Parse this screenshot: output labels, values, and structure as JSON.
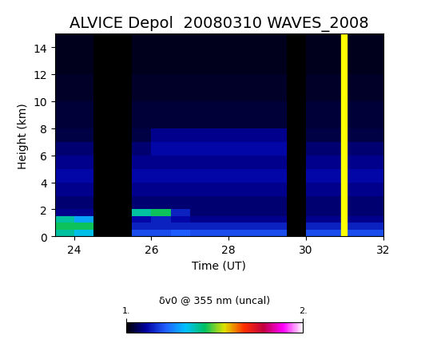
{
  "chart_data": {
    "type": "heatmap",
    "title": "ALVICE Depol  20080310 WAVES_2008",
    "x_label": "Time (UT)",
    "y_label": "Height (km)",
    "xlim": [
      23.5,
      32
    ],
    "xticks": [
      24,
      26,
      28,
      30,
      32
    ],
    "ylim": [
      0,
      15
    ],
    "yticks": [
      0,
      2,
      4,
      6,
      8,
      10,
      12,
      14
    ],
    "x_edges": [
      23.5,
      24,
      24.5,
      25,
      25.5,
      26,
      26.5,
      27,
      27.5,
      28,
      28.5,
      29,
      29.5,
      30,
      30.5,
      31,
      31.5,
      32
    ],
    "y_edges": [
      0,
      0.5,
      1,
      1.5,
      2,
      3,
      4,
      5,
      6,
      7,
      8,
      10,
      12,
      15
    ],
    "cells": [
      [
        1.4,
        1.35,
        1.0,
        1.0,
        1.2,
        1.2,
        1.22,
        1.2,
        1.2,
        1.2,
        1.2,
        1.2,
        null,
        1.2,
        1.2,
        1.2,
        1.2
      ],
      [
        1.45,
        1.45,
        1.0,
        1.0,
        1.15,
        1.15,
        1.15,
        1.15,
        1.15,
        1.15,
        1.15,
        1.15,
        null,
        1.15,
        1.15,
        1.15,
        1.15
      ],
      [
        1.4,
        1.3,
        1.0,
        1.0,
        1.12,
        1.15,
        1.12,
        1.1,
        1.1,
        1.1,
        1.1,
        1.1,
        null,
        1.1,
        1.1,
        1.1,
        1.1
      ],
      [
        1.1,
        1.1,
        1.0,
        1.0,
        1.4,
        1.45,
        1.15,
        1.08,
        1.08,
        1.08,
        1.08,
        1.08,
        null,
        1.08,
        1.08,
        1.08,
        1.08
      ],
      [
        1.08,
        1.08,
        1.0,
        1.0,
        1.08,
        1.08,
        1.08,
        1.08,
        1.08,
        1.08,
        1.08,
        1.08,
        null,
        1.08,
        1.08,
        1.08,
        1.08
      ],
      [
        1.1,
        1.1,
        1.0,
        1.0,
        1.1,
        1.1,
        1.1,
        1.1,
        1.1,
        1.1,
        1.1,
        1.1,
        null,
        1.1,
        1.1,
        1.1,
        1.1
      ],
      [
        1.12,
        1.12,
        1.0,
        1.0,
        1.12,
        1.12,
        1.12,
        1.12,
        1.12,
        1.12,
        1.12,
        1.12,
        null,
        1.12,
        1.12,
        1.12,
        1.12
      ],
      [
        1.1,
        1.1,
        1.0,
        1.0,
        1.1,
        1.1,
        1.1,
        1.1,
        1.1,
        1.1,
        1.1,
        1.1,
        null,
        1.1,
        1.1,
        1.1,
        1.1
      ],
      [
        1.08,
        1.08,
        1.0,
        1.0,
        1.08,
        1.12,
        1.12,
        1.12,
        1.12,
        1.12,
        1.12,
        1.12,
        null,
        1.08,
        1.08,
        1.08,
        1.08
      ],
      [
        1.05,
        1.05,
        1.0,
        1.0,
        1.05,
        1.1,
        1.1,
        1.1,
        1.1,
        1.1,
        1.1,
        1.1,
        null,
        1.05,
        1.05,
        1.05,
        1.05
      ],
      [
        1.04,
        1.04,
        1.0,
        1.0,
        1.04,
        1.04,
        1.04,
        1.04,
        1.04,
        1.04,
        1.04,
        1.04,
        null,
        1.04,
        1.04,
        1.04,
        1.04
      ],
      [
        1.03,
        1.03,
        1.0,
        1.0,
        1.03,
        1.03,
        1.03,
        1.03,
        1.03,
        1.03,
        1.03,
        1.03,
        null,
        1.03,
        1.03,
        1.03,
        1.03
      ],
      [
        1.02,
        1.02,
        1.0,
        1.0,
        1.02,
        1.02,
        1.02,
        1.02,
        1.02,
        1.02,
        1.02,
        1.02,
        null,
        1.02,
        1.02,
        1.02,
        1.02
      ]
    ],
    "colorbar_label": "δv0 @ 355 nm (uncal)",
    "colorbar_range": [
      1,
      2
    ],
    "colorbar_ticks": [
      {
        "value": 1,
        "label": "1."
      },
      {
        "value": 2,
        "label": "2."
      }
    ],
    "vertical_line": {
      "x": 31,
      "color": "#ffff00"
    }
  }
}
